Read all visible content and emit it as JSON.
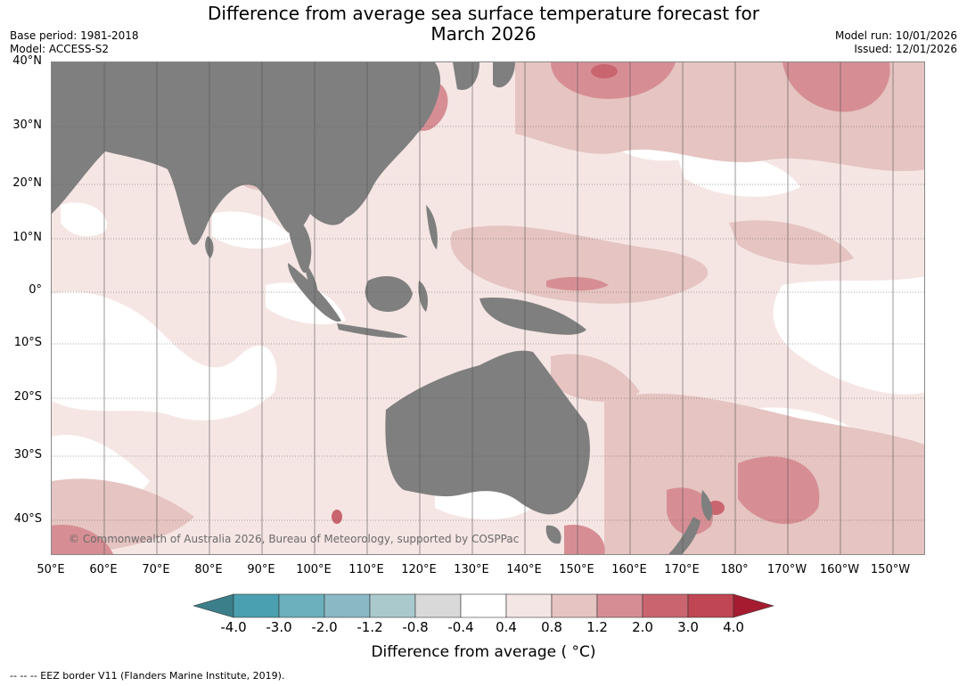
{
  "title_line1": "Difference from average sea surface temperature forecast for",
  "title_line2": "March 2026",
  "base_period": "Base period: 1981-2018",
  "model": "Model: ACCESS-S2",
  "model_run": "Model run: 10/01/2026",
  "issued": "Issued: 12/01/2026",
  "copyright": "© Commonwealth of Australia 2026, Bureau of Meteorology, supported by COSPPac",
  "lat_labels": [
    "40°N",
    "30°N",
    "20°N",
    "10°N",
    "0°",
    "10°S",
    "20°S",
    "30°S",
    "40°S"
  ],
  "lon_labels": [
    "50°E",
    "60°E",
    "70°E",
    "80°E",
    "90°E",
    "100°E",
    "110°E",
    "120°E",
    "130°E",
    "140°E",
    "150°E",
    "160°E",
    "170°E",
    "180°",
    "170°W",
    "160°W",
    "150°W"
  ],
  "colorbar": {
    "title": "Difference from average ( °C)",
    "tick_labels": [
      "-4.0",
      "-3.0",
      "-2.0",
      "-1.2",
      "-0.8",
      "-0.4",
      "0.4",
      "0.8",
      "1.2",
      "2.0",
      "3.0",
      "4.0"
    ],
    "colors": [
      "#3b7f8a",
      "#4aa0b0",
      "#6cb0bd",
      "#8ab9c5",
      "#a9c9cd",
      "#d9d9d9",
      "#ffffff",
      "#f4e6e4",
      "#e5c4c1",
      "#d68e94",
      "#c9656f",
      "#bf4652",
      "#a51c30"
    ]
  },
  "colors": {
    "land": "#7f7f7f",
    "ocean_base": "#f5e6e4",
    "neutral": "#ffffff",
    "warm1": "#e5c4c1",
    "warm2": "#d68e94",
    "warm3": "#c9656f"
  },
  "footer": "--  --  -- EEZ border V11 (Flanders Marine Institute, 2019)."
}
